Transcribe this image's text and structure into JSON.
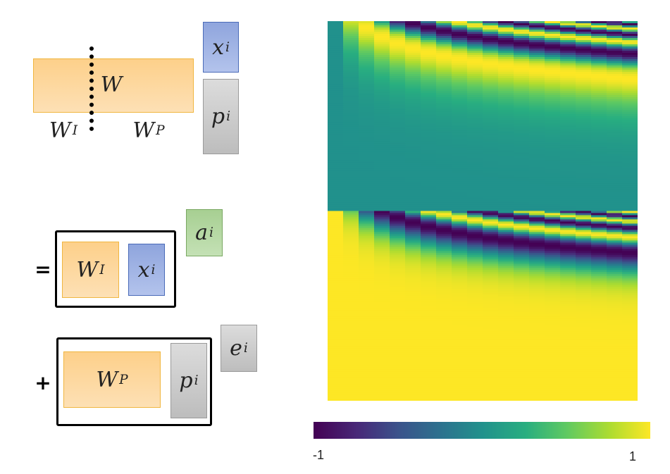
{
  "diagram": {
    "labels": {
      "W": "W",
      "W_I": "W",
      "W_P": "W",
      "x": "x",
      "p": "p",
      "a": "a",
      "e": "e",
      "sup_I": "I",
      "sup_P": "P",
      "sup_i": "i"
    },
    "operators": {
      "equals": "=",
      "plus": "+"
    }
  },
  "heatmap": {
    "colormap": "viridis",
    "colorbar_min": "-1",
    "colorbar_max": "1",
    "colors": [
      "#440154",
      "#3b528b",
      "#21918c",
      "#5ec962",
      "#fde725"
    ]
  }
}
